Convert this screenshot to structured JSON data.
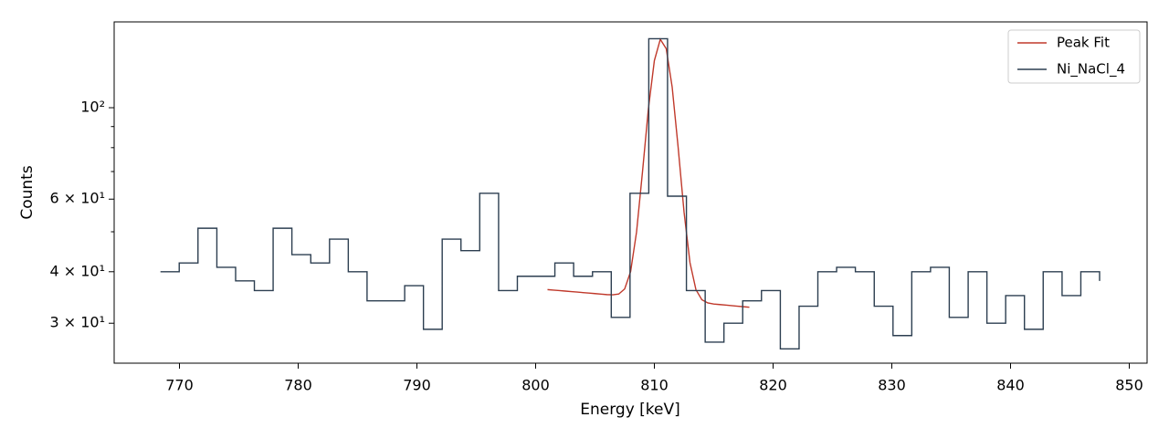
{
  "chart_data": {
    "type": "line",
    "xlabel": "Energy [keV]",
    "ylabel": "Counts",
    "yscale": "log",
    "legend": "upper right",
    "xlim": [
      764.5,
      851.5
    ],
    "ylim": [
      24,
      161.5
    ],
    "xticks": [
      770,
      780,
      790,
      800,
      810,
      820,
      830,
      840,
      850
    ],
    "yticks": [
      {
        "value": 30,
        "label": "3 × 10¹"
      },
      {
        "value": 40,
        "label": "4 × 10¹"
      },
      {
        "value": 60,
        "label": "6 × 10¹"
      },
      {
        "value": 100,
        "label": "10²"
      }
    ],
    "yminorticks": [
      50,
      70,
      80,
      90
    ],
    "series": [
      {
        "name": "Peak Fit",
        "color": "#c0392b",
        "x": [
          801,
          801.5,
          802,
          802.5,
          803,
          803.5,
          804,
          804.5,
          805,
          805.5,
          806,
          806.5,
          807,
          807.5,
          808,
          808.5,
          809,
          809.5,
          810,
          810.5,
          811,
          811.5,
          812,
          812.5,
          813,
          813.5,
          814,
          814.5,
          815,
          815.5,
          816,
          816.5,
          817,
          817.5,
          818
        ],
        "values": [
          36.2,
          36.1,
          36.0,
          35.9,
          35.8,
          35.7,
          35.6,
          35.5,
          35.4,
          35.3,
          35.2,
          35.16,
          35.31,
          36.34,
          40.05,
          49.95,
          69.9,
          99.6,
          130.1,
          146.5,
          139.0,
          112.2,
          80.3,
          55.8,
          42.07,
          36.19,
          34.2,
          33.61,
          33.4,
          33.3,
          33.2,
          33.1,
          33.0,
          32.9,
          32.8
        ]
      },
      {
        "name": "Ni_NaCl_4",
        "color": "#2c3e50",
        "drawstyle": "steps-post",
        "x": [
          768.4,
          769.98,
          771.56,
          773.15,
          774.73,
          776.31,
          777.89,
          779.47,
          781.06,
          782.64,
          784.22,
          785.8,
          787.38,
          788.97,
          790.55,
          792.13,
          793.71,
          795.29,
          796.88,
          798.46,
          800.04,
          801.62,
          803.2,
          804.79,
          806.37,
          807.95,
          809.53,
          811.11,
          812.7,
          814.28,
          815.86,
          817.44,
          819.02,
          820.61,
          822.19,
          823.77,
          825.35,
          826.93,
          828.52,
          830.1,
          831.68,
          833.26,
          834.84,
          836.43,
          838.01,
          839.59,
          841.17,
          842.75,
          844.34,
          845.92,
          847.5
        ],
        "values": [
          40,
          42,
          51,
          41,
          38,
          36,
          51,
          44,
          42,
          48,
          40,
          34,
          34,
          37,
          29,
          48,
          45,
          62,
          36,
          39,
          39,
          42,
          39,
          40,
          31,
          62,
          147,
          61,
          36,
          27,
          30,
          34,
          36,
          26,
          33,
          40,
          41,
          40,
          33,
          28,
          40,
          41,
          31,
          40,
          30,
          35,
          29,
          40,
          35,
          40,
          38
        ]
      }
    ]
  }
}
